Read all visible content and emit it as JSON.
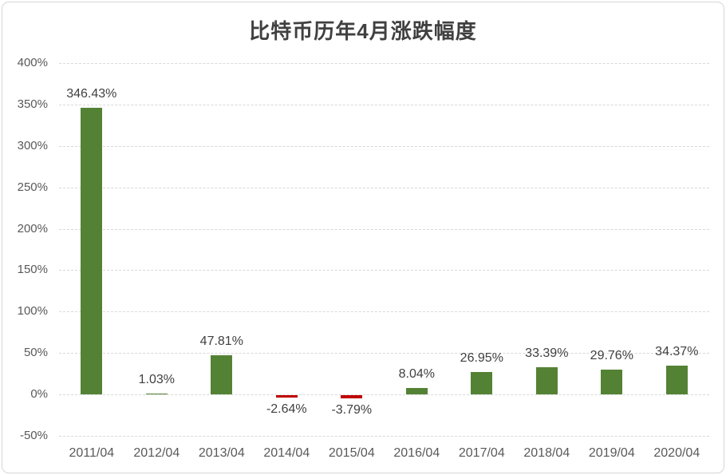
{
  "chart_data": {
    "type": "bar",
    "title": "比特币历年4月涨跌幅度",
    "categories": [
      "2011/04",
      "2012/04",
      "2013/04",
      "2014/04",
      "2015/04",
      "2016/04",
      "2017/04",
      "2018/04",
      "2019/04",
      "2020/04"
    ],
    "values": [
      346.43,
      1.03,
      47.81,
      -2.64,
      -3.79,
      8.04,
      26.95,
      33.39,
      29.76,
      34.37
    ],
    "value_labels": [
      "346.43%",
      "1.03%",
      "47.81%",
      "-2.64%",
      "-3.79%",
      "8.04%",
      "26.95%",
      "33.39%",
      "29.76%",
      "34.37%"
    ],
    "y_tick_labels": [
      "400%",
      "350%",
      "300%",
      "250%",
      "200%",
      "150%",
      "100%",
      "50%",
      "0%",
      "-50%"
    ],
    "y_tick_values": [
      400,
      350,
      300,
      250,
      200,
      150,
      100,
      50,
      0,
      -50
    ],
    "ylim": [
      -50,
      400
    ],
    "xlabel": "",
    "ylabel": "",
    "grid": true,
    "legend": false,
    "colors": {
      "positive_bar": "#548235",
      "negative_bar": "#c00000",
      "gridline": "#d9d9d9",
      "axis_text": "#595959",
      "label_text": "#404040",
      "title_text": "#404040",
      "background": "#ffffff"
    }
  }
}
